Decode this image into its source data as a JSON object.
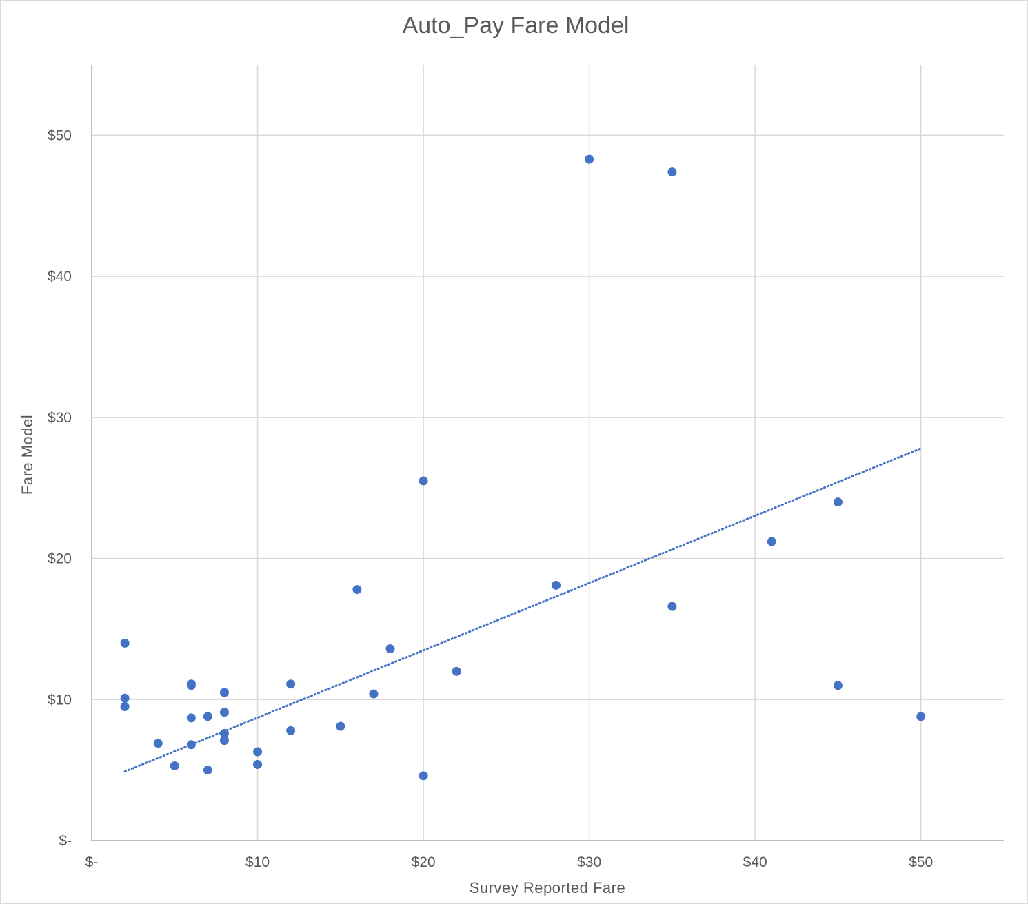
{
  "chart_data": {
    "type": "scatter",
    "title": "Auto_Pay Fare Model",
    "xlabel": "Survey Reported  Fare",
    "ylabel": "Fare Model",
    "xlim": [
      0,
      55
    ],
    "ylim": [
      0,
      55
    ],
    "x_ticks": [
      0,
      10,
      20,
      30,
      40,
      50
    ],
    "y_ticks": [
      0,
      10,
      20,
      30,
      40,
      50
    ],
    "x_tick_labels": [
      "$-",
      "$10",
      "$20",
      "$30",
      "$40",
      "$50"
    ],
    "y_tick_labels": [
      "$-",
      "$10",
      "$20",
      "$30",
      "$40",
      "$50"
    ],
    "grid": true,
    "legend": "none",
    "colors": {
      "points": "#4472c4",
      "trendline": "#4472c4",
      "grid": "#d9d9d9",
      "text": "#595959"
    },
    "series": [
      {
        "points": [
          {
            "x": 2,
            "y": 14.0
          },
          {
            "x": 2,
            "y": 10.1
          },
          {
            "x": 2,
            "y": 9.5
          },
          {
            "x": 4,
            "y": 6.9
          },
          {
            "x": 5,
            "y": 5.3
          },
          {
            "x": 6,
            "y": 11.1
          },
          {
            "x": 6,
            "y": 11.0
          },
          {
            "x": 6,
            "y": 8.7
          },
          {
            "x": 6,
            "y": 6.8
          },
          {
            "x": 7,
            "y": 8.8
          },
          {
            "x": 7,
            "y": 5.0
          },
          {
            "x": 8,
            "y": 10.5
          },
          {
            "x": 8,
            "y": 9.1
          },
          {
            "x": 8,
            "y": 7.6
          },
          {
            "x": 8,
            "y": 7.1
          },
          {
            "x": 10,
            "y": 6.3
          },
          {
            "x": 10,
            "y": 5.4
          },
          {
            "x": 12,
            "y": 11.1
          },
          {
            "x": 12,
            "y": 7.8
          },
          {
            "x": 15,
            "y": 8.1
          },
          {
            "x": 16,
            "y": 17.8
          },
          {
            "x": 17,
            "y": 10.4
          },
          {
            "x": 18,
            "y": 13.6
          },
          {
            "x": 20,
            "y": 25.5
          },
          {
            "x": 20,
            "y": 4.6
          },
          {
            "x": 22,
            "y": 12.0
          },
          {
            "x": 28,
            "y": 18.1
          },
          {
            "x": 30,
            "y": 48.3
          },
          {
            "x": 35,
            "y": 47.4
          },
          {
            "x": 35,
            "y": 16.6
          },
          {
            "x": 41,
            "y": 21.2
          },
          {
            "x": 45,
            "y": 24.0
          },
          {
            "x": 45,
            "y": 11.0
          },
          {
            "x": 50,
            "y": 8.8
          }
        ]
      }
    ],
    "trendline": {
      "type": "linear",
      "style": "dotted",
      "points": [
        {
          "x": 2,
          "y": 4.9
        },
        {
          "x": 50,
          "y": 27.8
        }
      ]
    }
  }
}
